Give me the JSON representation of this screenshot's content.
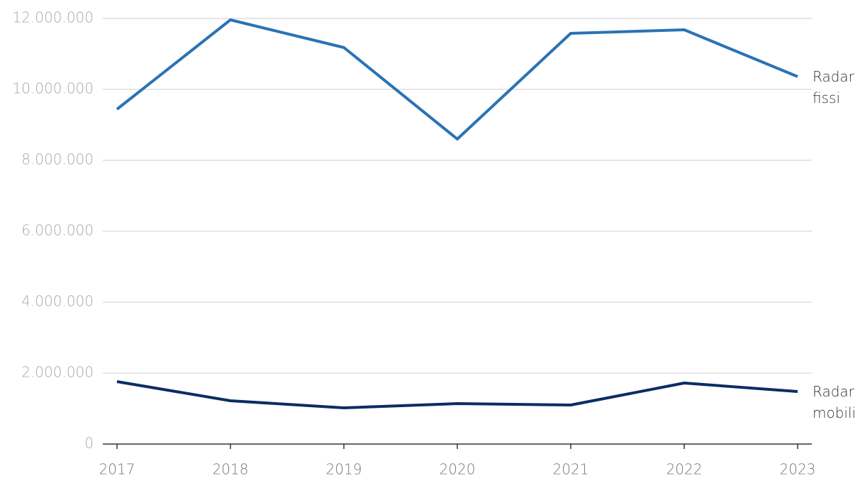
{
  "chart_data": {
    "type": "line",
    "categories": [
      "2017",
      "2018",
      "2019",
      "2020",
      "2021",
      "2022",
      "2023"
    ],
    "series": [
      {
        "name": "Radar fissi",
        "color": "#2a72b5",
        "values": [
          9440000,
          11960000,
          11180000,
          8600000,
          11580000,
          11680000,
          10360000
        ]
      },
      {
        "name": "Radar mobili",
        "color": "#0b2d63",
        "values": [
          1760000,
          1220000,
          1020000,
          1140000,
          1100000,
          1720000,
          1480000
        ]
      }
    ],
    "ylim": [
      0,
      12000000
    ],
    "yticks": [
      0,
      {
        "value": 2000000,
        "label": "2.000.000"
      },
      {
        "value": 4000000,
        "label": "4.000.000"
      },
      {
        "value": 6000000,
        "label": "6.000.000"
      },
      {
        "value": 8000000,
        "label": "8.000.000"
      },
      {
        "value": 10000000,
        "label": "10.000.000"
      },
      {
        "value": 12000000,
        "label": "12.000.000"
      }
    ],
    "grid": true
  }
}
